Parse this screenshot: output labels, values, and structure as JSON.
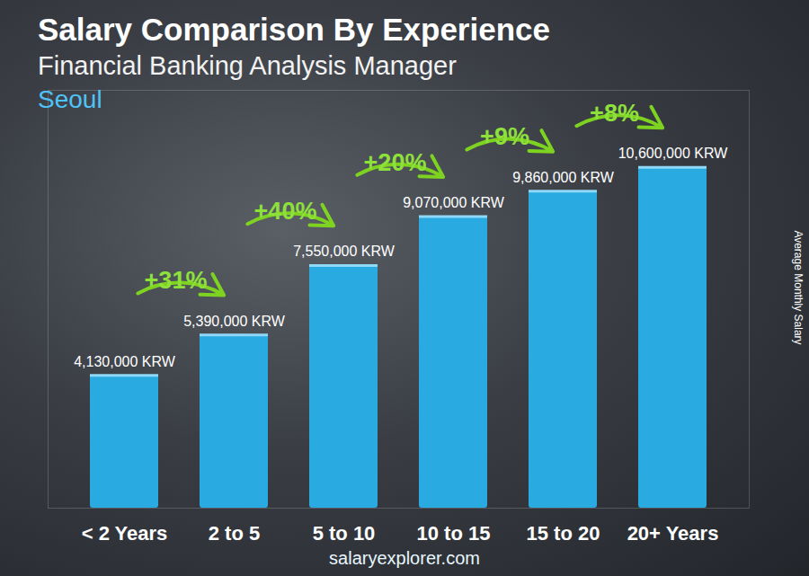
{
  "chart_data": {
    "type": "bar",
    "title": "Salary Comparison By Experience",
    "subtitle": "Financial Banking Analysis Manager",
    "location": "Seoul",
    "y_label": "Average Monthly Salary",
    "footer": "salaryexplorer.com",
    "categories": [
      "< 2 Years",
      "2 to 5",
      "5 to 10",
      "10 to 15",
      "15 to 20",
      "20+ Years"
    ],
    "values": [
      4130000,
      5390000,
      7550000,
      9070000,
      9860000,
      10600000
    ],
    "value_labels": [
      "4,130,000 KRW",
      "5,390,000 KRW",
      "7,550,000 KRW",
      "9,070,000 KRW",
      "9,860,000 KRW",
      "10,600,000 KRW"
    ],
    "annotations": [
      {
        "value": 31,
        "label": "+31%"
      },
      {
        "value": 40,
        "label": "+40%"
      },
      {
        "value": 20,
        "label": "+20%"
      },
      {
        "value": 9,
        "label": "+9%"
      },
      {
        "value": 8,
        "label": "+8%"
      }
    ],
    "color": "#29abe2",
    "ylim": [
      0,
      13000000
    ],
    "yticks": [],
    "grid": false,
    "data_labels": true,
    "tick_labels": "x"
  }
}
